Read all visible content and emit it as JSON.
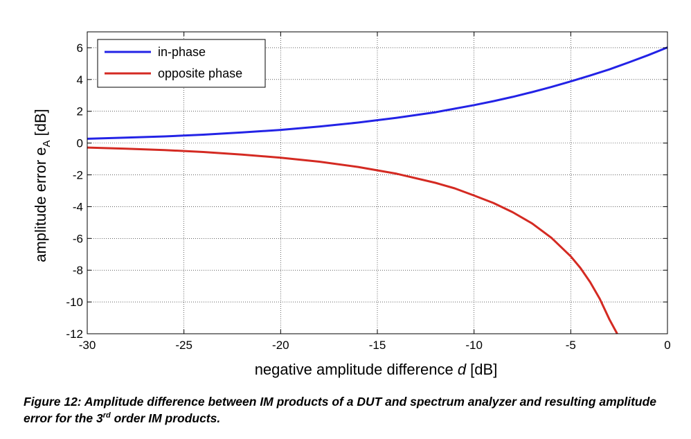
{
  "chart_data": {
    "type": "line",
    "xlabel_prefix": "negative amplitude difference ",
    "xlabel_var": "d",
    "xlabel_suffix": " [dB]",
    "ylabel_main": "amplitude error e",
    "ylabel_sub": "A",
    "ylabel_suffix": " [dB]",
    "xlim": [
      -30,
      0
    ],
    "ylim": [
      -12,
      7
    ],
    "xticks": [
      -30,
      -25,
      -20,
      -15,
      -10,
      -5,
      0
    ],
    "yticks": [
      -12,
      -10,
      -8,
      -6,
      -4,
      -2,
      0,
      2,
      4,
      6
    ],
    "grid": true,
    "legend_position": "top-left",
    "series": [
      {
        "name": "in-phase",
        "color": "#2323e6",
        "x": [
          -30,
          -28,
          -26,
          -24,
          -22,
          -20,
          -18,
          -16,
          -14,
          -12,
          -10,
          -9,
          -8,
          -7,
          -6,
          -5,
          -4,
          -3,
          -2,
          -1,
          0
        ],
        "y": [
          0.27,
          0.34,
          0.42,
          0.53,
          0.67,
          0.83,
          1.04,
          1.29,
          1.59,
          1.94,
          2.39,
          2.64,
          2.91,
          3.21,
          3.53,
          3.88,
          4.25,
          4.64,
          5.08,
          5.53,
          6.02
        ]
      },
      {
        "name": "opposite phase",
        "color": "#d42a22",
        "x": [
          -30,
          -28,
          -26,
          -24,
          -22,
          -20,
          -18,
          -16,
          -14,
          -12,
          -11,
          -10,
          -9,
          -8,
          -7,
          -6,
          -5,
          -4.5,
          -4,
          -3.5,
          -3,
          -2.6
        ],
        "y": [
          -0.28,
          -0.35,
          -0.44,
          -0.56,
          -0.72,
          -0.92,
          -1.17,
          -1.5,
          -1.93,
          -2.5,
          -2.85,
          -3.3,
          -3.77,
          -4.35,
          -5.06,
          -5.96,
          -7.13,
          -7.86,
          -8.75,
          -9.8,
          -11.1,
          -12.0
        ]
      }
    ]
  },
  "caption": {
    "part1": "Figure 12: Amplitude difference between IM products of a DUT and spectrum analyzer and resulting amplitude error for the 3",
    "sup": "rd",
    "part2": " order IM products."
  }
}
